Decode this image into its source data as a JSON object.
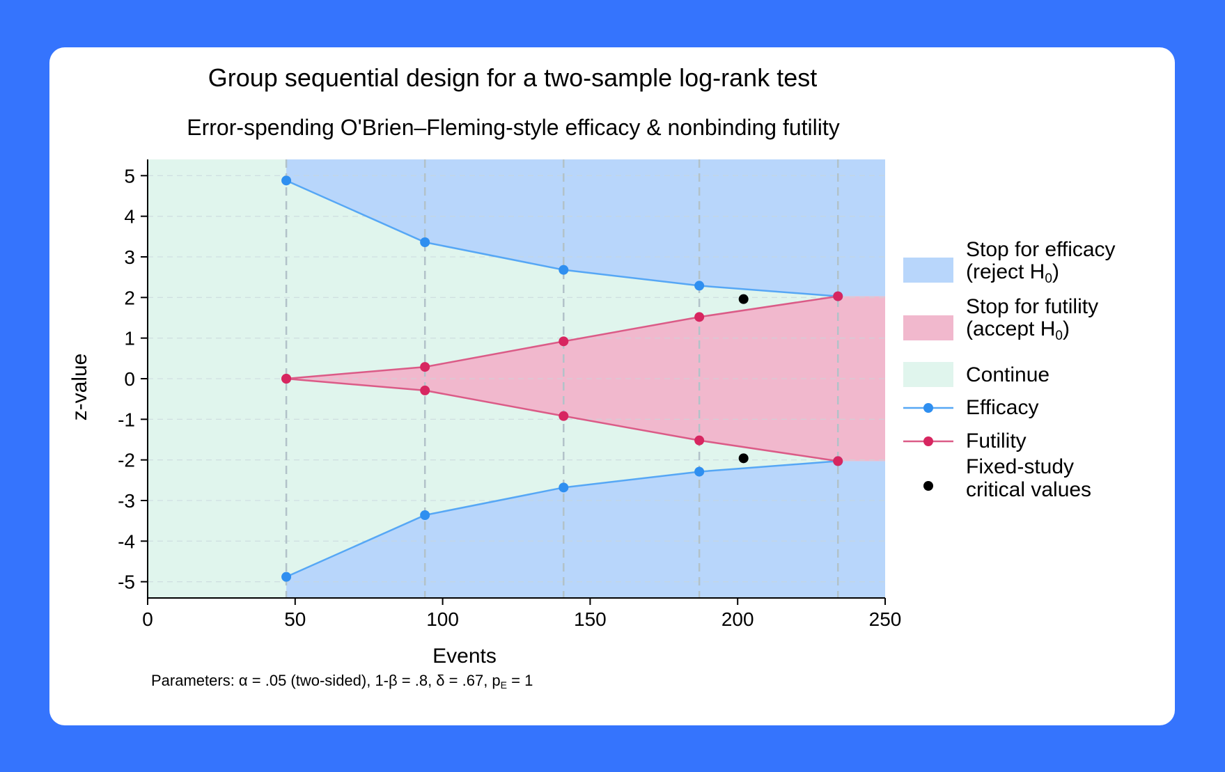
{
  "colors": {
    "background": "#3574fd",
    "card": "#ffffff",
    "efficacy_region": "#b8d6fb",
    "futility_region": "#f1b8cd",
    "continue_region": "#e0f5ed",
    "efficacy_line": "#56a7f5",
    "efficacy_marker": "#2f8ff0",
    "futility_line": "#db5b87",
    "futility_marker": "#d72660",
    "fixed_marker": "#000000",
    "stage_line": "#b2c2c9"
  },
  "chart_data": {
    "type": "line",
    "title": "Group sequential design for a two-sample log-rank test",
    "subtitle": "Error-spending O'Brien–Fleming-style efficacy & nonbinding futility",
    "xlabel": "Events",
    "ylabel": "z-value",
    "xlim": [
      0,
      250
    ],
    "ylim": [
      -5.4,
      5.4
    ],
    "xticks": [
      0,
      50,
      100,
      150,
      200,
      250
    ],
    "yticks": [
      5,
      4,
      3,
      2,
      1,
      0,
      -1,
      -2,
      -3,
      -4,
      -5
    ],
    "grid": "horizontal dashed",
    "legend_position": "right",
    "stages_x": [
      47,
      94,
      141,
      187,
      234
    ],
    "series": [
      {
        "name": "Efficacy",
        "x": [
          47,
          94,
          141,
          187,
          234
        ],
        "upper": [
          4.88,
          3.36,
          2.68,
          2.29,
          2.03
        ],
        "lower": [
          -4.88,
          -3.36,
          -2.68,
          -2.29,
          -2.03
        ]
      },
      {
        "name": "Futility",
        "x": [
          47,
          94,
          141,
          187,
          234
        ],
        "upper": [
          0.0,
          0.29,
          0.92,
          1.52,
          2.03
        ],
        "lower": [
          0.0,
          -0.29,
          -0.92,
          -1.52,
          -2.03
        ]
      },
      {
        "name": "Fixed-study critical values",
        "x": [
          202,
          202
        ],
        "y": [
          1.96,
          -1.96
        ]
      }
    ],
    "legend": [
      {
        "type": "area",
        "color_key": "efficacy_region",
        "line1": "Stop for efficacy",
        "line2_pre": "(reject H",
        "line2_sub": "0",
        "line2_post": ")"
      },
      {
        "type": "area",
        "color_key": "futility_region",
        "line1": "Stop for futility",
        "line2_pre": "(accept H",
        "line2_sub": "0",
        "line2_post": ")"
      },
      {
        "type": "area",
        "color_key": "continue_region",
        "line1": "Continue"
      },
      {
        "type": "line",
        "color_key": "efficacy",
        "line1": "Efficacy"
      },
      {
        "type": "line",
        "color_key": "futility",
        "line1": "Futility"
      },
      {
        "type": "dot",
        "color_key": "fixed_marker",
        "line1": "Fixed-study",
        "line1b": "critical values"
      }
    ],
    "note": {
      "text_pre": "Parameters: α = .05 (two-sided), 1-β = .8, δ = .67, p",
      "text_sub": "E",
      "text_post": " = 1"
    }
  }
}
